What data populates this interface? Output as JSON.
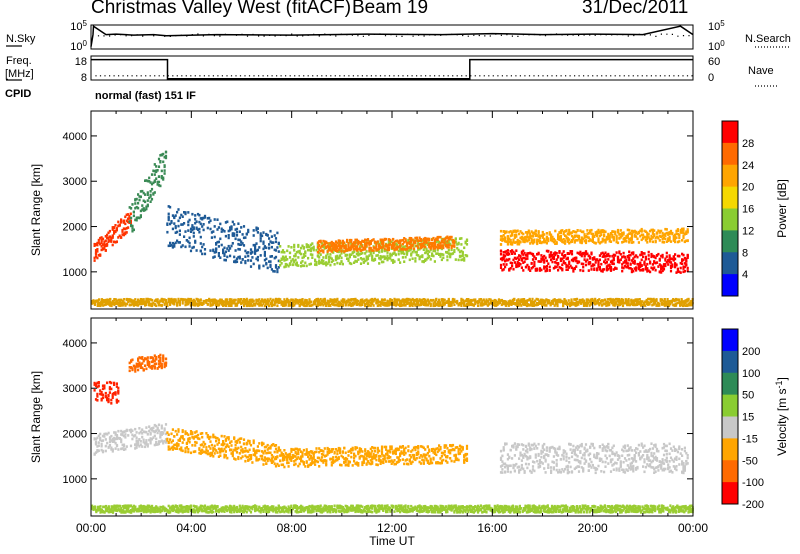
{
  "title": {
    "station": "Christmas Valley West (fitACF)",
    "beam": "Beam 19",
    "date": "31/Dec/2011"
  },
  "mode_text": "normal (fast) 151 IF",
  "colors": {
    "axis": "#000000",
    "grid": "#bbbbbb"
  },
  "chart_data": [
    {
      "type": "line",
      "name": "N.Sky / N.Search strip",
      "left_label": "N.Sky",
      "right_label": "N.Search",
      "left_ticks": [
        "10^5",
        "10^0"
      ],
      "right_ticks": [
        "10^5",
        "10^0"
      ],
      "x": [
        0,
        0.08,
        0.1,
        0.6,
        1.0,
        1.7,
        2.5,
        3,
        5,
        8,
        11,
        14,
        16,
        18,
        20,
        22,
        23.5,
        24
      ],
      "y_norm": [
        0.1,
        0.6,
        0.95,
        0.6,
        0.62,
        0.58,
        0.6,
        0.55,
        0.6,
        0.58,
        0.62,
        0.6,
        0.64,
        0.6,
        0.62,
        0.6,
        0.95,
        0.6
      ]
    },
    {
      "type": "line",
      "name": "Freq / Nave strip",
      "left_label": "Freq.",
      "left_unit": "[MHz]",
      "right_label": "Nave",
      "left_ticks": [
        "18",
        "8"
      ],
      "right_ticks": [
        "60",
        "0"
      ],
      "freq": {
        "x": [
          0,
          3.05,
          3.05,
          15.1,
          15.1,
          24
        ],
        "y_norm": [
          0.85,
          0.85,
          0.05,
          0.05,
          0.85,
          0.85
        ]
      },
      "nave_level": 0.2
    },
    {
      "type": "heatmap",
      "name": "Power",
      "ylabel": "Slant Range [km]",
      "yticks": [
        1000,
        2000,
        3000,
        4000
      ],
      "ylim": [
        180,
        4550
      ],
      "colorbar_label": "Power [dB]",
      "colorbar_ticks": [
        "28",
        "24",
        "20",
        "16",
        "12",
        "8",
        "4"
      ],
      "colorbar_colors": [
        "#ff0000",
        "#ff6a00",
        "#ffa500",
        "#f5d800",
        "#8acd32",
        "#2e8b57",
        "#1e5a96",
        "#0000ff"
      ],
      "features": [
        {
          "x": [
            0.1,
            1.6
          ],
          "center": [
            1450,
            2150
          ],
          "width": 420,
          "color": "#ff3300"
        },
        {
          "x": [
            1.5,
            3.0
          ],
          "center": [
            2100,
            3500
          ],
          "width": 700,
          "color": "#3a8a55"
        },
        {
          "x": [
            3.0,
            7.5
          ],
          "center": [
            2000,
            1400
          ],
          "width": 900,
          "color": "#1e5a96"
        },
        {
          "x": [
            7.5,
            15.0
          ],
          "center": [
            1350,
            1500
          ],
          "width": 500,
          "color": "#9acd32"
        },
        {
          "x": [
            9.0,
            14.5
          ],
          "center": [
            1550,
            1650
          ],
          "width": 250,
          "color": "#ff7a00"
        },
        {
          "x": [
            16.3,
            23.8
          ],
          "center": [
            1250,
            1200
          ],
          "width": 450,
          "color": "#ff0000"
        },
        {
          "x": [
            16.3,
            23.8
          ],
          "center": [
            1750,
            1800
          ],
          "width": 300,
          "color": "#ffa500"
        },
        {
          "x": [
            0.0,
            24.0
          ],
          "center": [
            320,
            320
          ],
          "width": 150,
          "color": "#e0a000"
        }
      ]
    },
    {
      "type": "heatmap",
      "name": "Velocity",
      "ylabel": "Slant Range [km]",
      "xlabel": "Time UT",
      "xticks": [
        "00:00",
        "04:00",
        "08:00",
        "12:00",
        "16:00",
        "20:00",
        "00:00"
      ],
      "xlim": [
        0,
        24
      ],
      "yticks": [
        1000,
        2000,
        3000,
        4000
      ],
      "ylim": [
        180,
        4550
      ],
      "colorbar_label": "Velocity [m s^-1]",
      "colorbar_ticks": [
        "200",
        "100",
        "50",
        "15",
        "-15",
        "-50",
        "-100",
        "-200"
      ],
      "colorbar_colors": [
        "#0000ff",
        "#1e5a96",
        "#2e8b57",
        "#8acd32",
        "#c8c8c8",
        "#ffa500",
        "#ff6a00",
        "#ff0000"
      ],
      "features": [
        {
          "x": [
            0.1,
            1.1
          ],
          "center": [
            2900,
            2900
          ],
          "width": 500,
          "color": "#ff2200"
        },
        {
          "x": [
            0.1,
            3.0
          ],
          "center": [
            1750,
            2000
          ],
          "width": 450,
          "color": "#c8c8c8"
        },
        {
          "x": [
            1.5,
            3.0
          ],
          "center": [
            3500,
            3600
          ],
          "width": 300,
          "color": "#ff6a00"
        },
        {
          "x": [
            3.0,
            7.5
          ],
          "center": [
            1900,
            1500
          ],
          "width": 500,
          "color": "#ffa500"
        },
        {
          "x": [
            7.5,
            15.0
          ],
          "center": [
            1450,
            1550
          ],
          "width": 400,
          "color": "#ffa500"
        },
        {
          "x": [
            16.3,
            23.8
          ],
          "center": [
            1450,
            1450
          ],
          "width": 650,
          "color": "#c8c8c8"
        },
        {
          "x": [
            0.0,
            24.0
          ],
          "center": [
            330,
            330
          ],
          "width": 150,
          "color": "#9acd32"
        }
      ]
    }
  ]
}
